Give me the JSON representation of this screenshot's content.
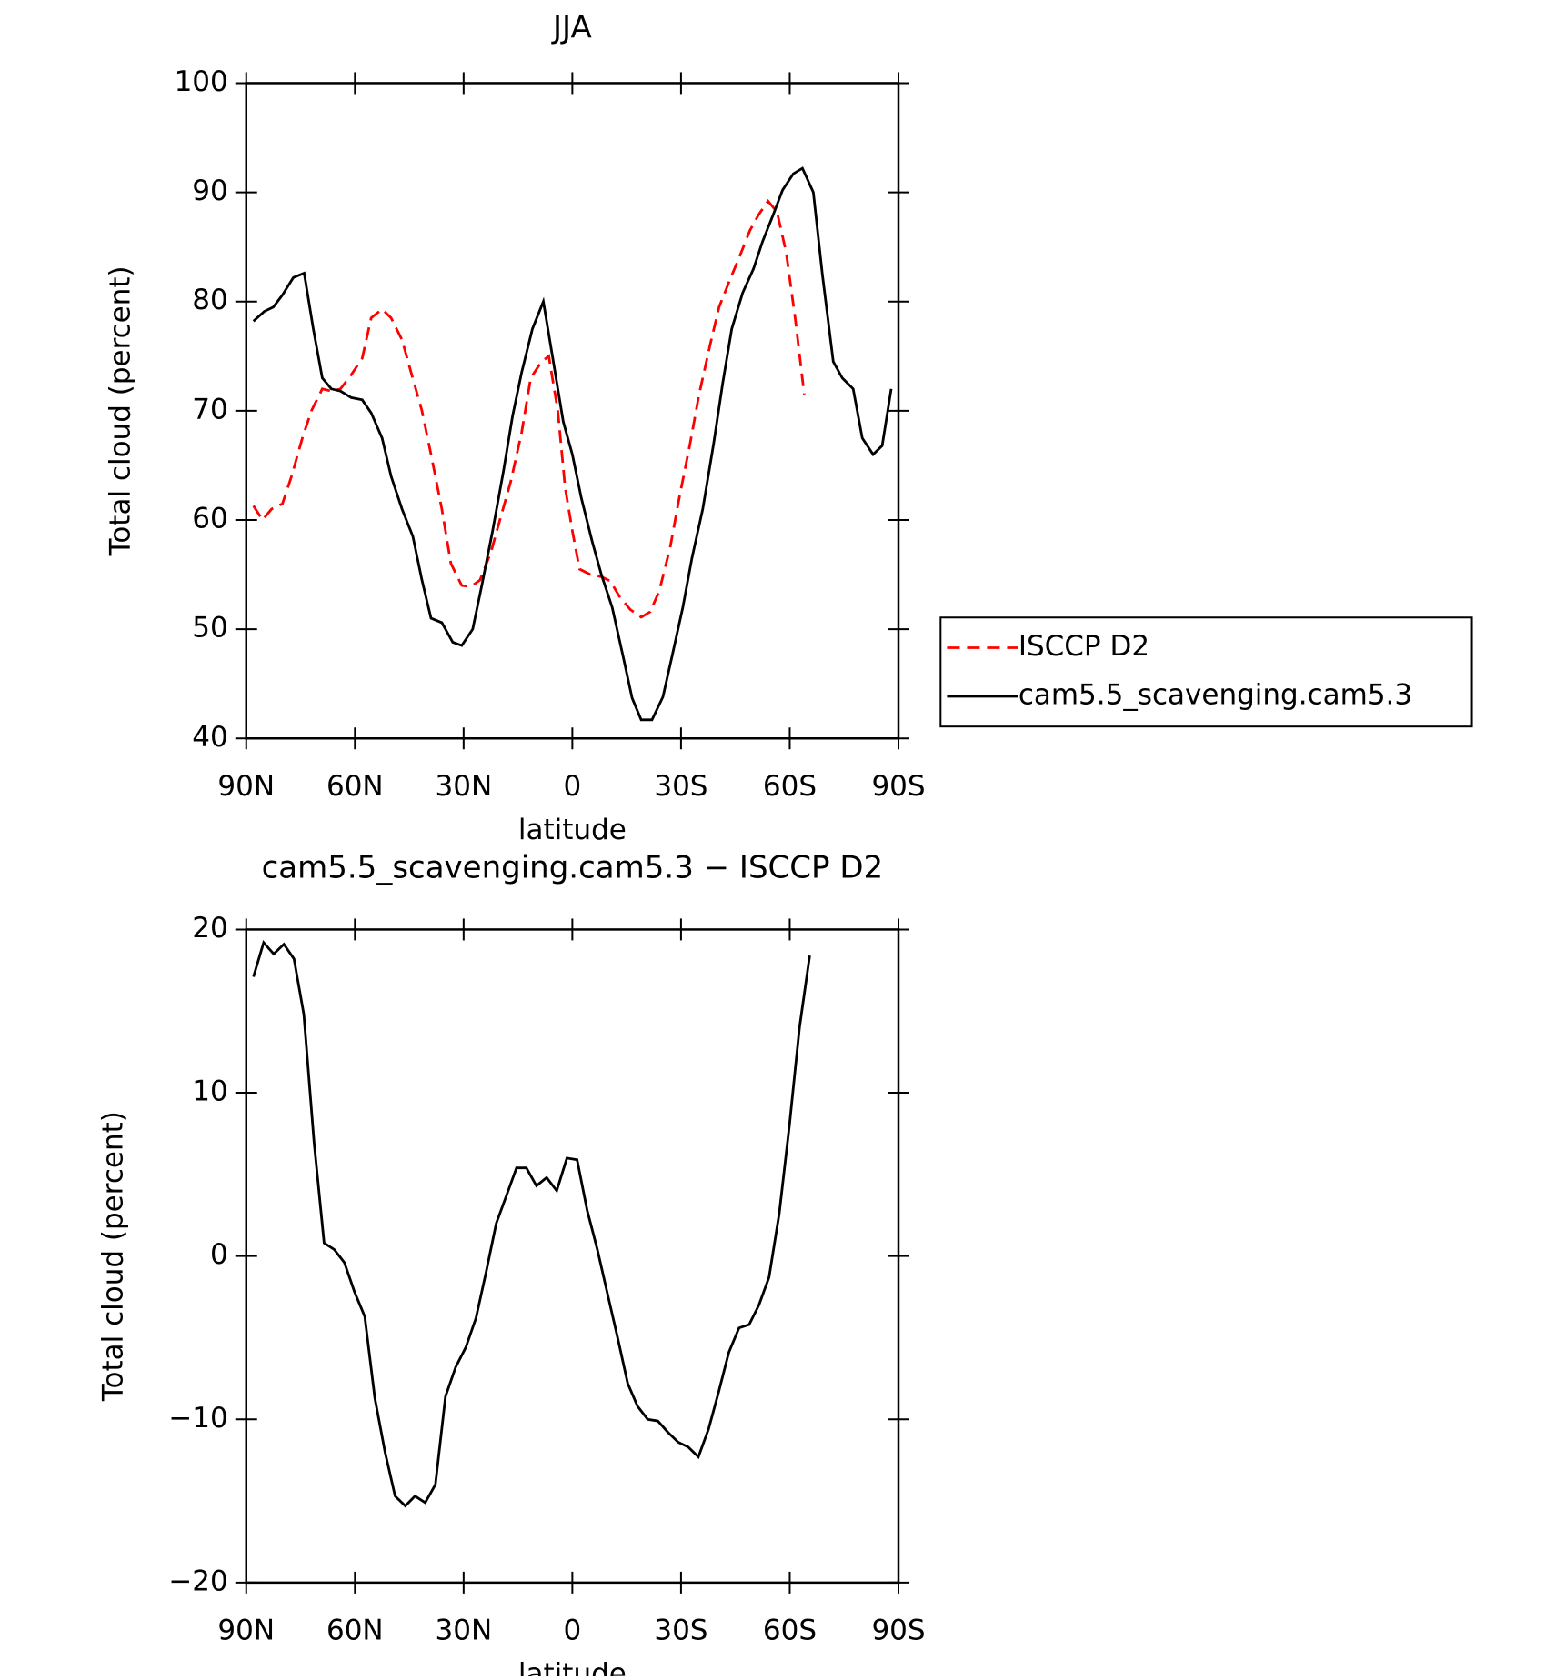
{
  "chart_data": [
    {
      "type": "line",
      "title": "JJA",
      "xlabel": "latitude",
      "ylabel": "Total cloud (percent)",
      "xlim": [
        90,
        -90
      ],
      "xticks": [
        {
          "value": 90,
          "label": "90N"
        },
        {
          "value": 60,
          "label": "60N"
        },
        {
          "value": 30,
          "label": "30N"
        },
        0,
        {
          "value": -30,
          "label": "30S"
        },
        {
          "value": -60,
          "label": "60S"
        },
        {
          "value": -90,
          "label": "90S"
        }
      ],
      "ylim": [
        40,
        100
      ],
      "yticks": [
        40,
        50,
        60,
        70,
        80,
        90,
        100
      ],
      "legend": "right",
      "series": [
        {
          "name": "ISCCP D2",
          "color": "#ff0000",
          "linestyle": "dashed",
          "x": [
            88,
            85.5,
            83,
            80,
            77.5,
            74.5,
            72,
            69,
            66.5,
            64,
            61,
            58,
            55.5,
            52.5,
            50,
            47,
            44.5,
            41.5,
            39,
            36,
            33.5,
            30.5,
            28,
            25.5,
            22.5,
            20,
            17,
            14,
            11.5,
            8.5,
            6.5,
            4,
            2,
            0,
            -2,
            -5,
            -8,
            -10.5,
            -13,
            -16,
            -19,
            -21.5,
            -24,
            -27,
            -29.5,
            -32.5,
            -35,
            -38,
            -40.5,
            -43.5,
            -46,
            -49,
            -51.5,
            -54,
            -56.5,
            -59,
            -61.5,
            -64
          ],
          "values": [
            61.3,
            60,
            61,
            61.5,
            64,
            67.5,
            70,
            72,
            71.8,
            72,
            73.3,
            74.8,
            78.5,
            79.3,
            78.5,
            76.5,
            73.5,
            70,
            66,
            61,
            56,
            54,
            53.9,
            54.5,
            57,
            60,
            63.5,
            68,
            73,
            74.5,
            75,
            70,
            63,
            59,
            55.5,
            55,
            54.8,
            54.4,
            53,
            51.8,
            51.1,
            51.6,
            53.5,
            57.5,
            62,
            67,
            71.5,
            76,
            79.5,
            82,
            84,
            86.5,
            88,
            89.2,
            88.2,
            84.5,
            78.5,
            71.5
          ]
        },
        {
          "name": "cam5.5_scavenging.cam5.3",
          "color": "#000000",
          "linestyle": "solid",
          "x": [
            88,
            85,
            82.5,
            80,
            77,
            74,
            71.5,
            69,
            66.5,
            64,
            61,
            58,
            55.5,
            52.5,
            50,
            47,
            44,
            41.5,
            39,
            36,
            33,
            30.5,
            27.5,
            25,
            22,
            19,
            16.5,
            14,
            11,
            8,
            5.5,
            2.5,
            0,
            -2.5,
            -5.5,
            -8,
            -11,
            -14,
            -16.5,
            -19,
            -22,
            -25,
            -27.5,
            -30.5,
            -33,
            -36,
            -39,
            -41.5,
            -44,
            -47,
            -50,
            -52.5,
            -55.5,
            -58,
            -61,
            -63.5,
            -66.5,
            -69,
            -72,
            -74.5,
            -77.5,
            -80,
            -83,
            -85.5,
            -88
          ],
          "values": [
            78.2,
            79.1,
            79.5,
            80.6,
            82.2,
            82.6,
            77.5,
            73,
            72,
            71.8,
            71.2,
            71,
            69.8,
            67.5,
            64,
            61,
            58.5,
            54.5,
            51,
            50.6,
            48.8,
            48.5,
            50,
            54,
            59,
            64.5,
            69.5,
            73.5,
            77.5,
            80,
            75,
            69,
            66,
            62,
            58,
            55,
            52,
            47.5,
            43.7,
            41.7,
            41.7,
            43.8,
            47.5,
            52,
            56.5,
            61,
            67,
            72.5,
            77.5,
            80.8,
            83,
            85.5,
            88,
            90.2,
            91.7,
            92.2,
            90,
            82.5,
            74.5,
            73,
            72,
            67.5,
            66,
            66.8,
            72
          ]
        }
      ]
    },
    {
      "type": "line",
      "title": "cam5.5_scavenging.cam5.3 − ISCCP D2",
      "xlabel": "latitude",
      "ylabel": "Total cloud (percent)",
      "xlim": [
        90,
        -90
      ],
      "xticks": [
        {
          "value": 90,
          "label": "90N"
        },
        {
          "value": 60,
          "label": "60N"
        },
        {
          "value": 30,
          "label": "30N"
        },
        0,
        {
          "value": -30,
          "label": "30S"
        },
        {
          "value": -60,
          "label": "60S"
        },
        {
          "value": -90,
          "label": "90S"
        }
      ],
      "ylim": [
        -20,
        20
      ],
      "yticks": [
        {
          "value": -20,
          "label": "−20"
        },
        {
          "value": -10,
          "label": "−10"
        },
        0,
        10,
        20
      ],
      "series": [
        {
          "color": "#000000",
          "linestyle": "solid",
          "x": [
            88,
            85.2,
            82.4,
            79.6,
            76.8,
            74.1,
            71.3,
            68.5,
            65.7,
            62.9,
            60.1,
            57.3,
            54.5,
            51.7,
            48.9,
            46.1,
            43.4,
            40.6,
            37.8,
            35,
            32.2,
            29.4,
            26.6,
            23.8,
            21,
            18.2,
            15.4,
            12.7,
            9.9,
            7.1,
            4.3,
            1.5,
            -1.3,
            -4.1,
            -6.9,
            -9.7,
            -12.5,
            -15.3,
            -18,
            -20.8,
            -23.6,
            -26.4,
            -29.2,
            -32,
            -34.8,
            -37.6,
            -40.4,
            -43.2,
            -46,
            -48.8,
            -51.5,
            -54.3,
            -57.1,
            -59.9,
            -62.7,
            -65.5
          ],
          "values": [
            17.1,
            19.2,
            18.5,
            19.1,
            18.2,
            14.8,
            7,
            0.8,
            0.4,
            -0.4,
            -2.2,
            -3.7,
            -8.7,
            -12,
            -14.7,
            -15.3,
            -14.7,
            -15.1,
            -14,
            -8.6,
            -6.8,
            -5.6,
            -3.8,
            -1,
            2,
            3.7,
            5.4,
            5.4,
            4.3,
            4.8,
            4,
            6,
            5.9,
            2.8,
            0.4,
            -2.3,
            -5,
            -7.8,
            -9.2,
            -10,
            -10.1,
            -10.8,
            -11.4,
            -11.7,
            -12.3,
            -10.6,
            -8.3,
            -5.9,
            -4.4,
            -4.2,
            -3,
            -1.3,
            2.6,
            8,
            14,
            18.4
          ]
        }
      ]
    }
  ]
}
